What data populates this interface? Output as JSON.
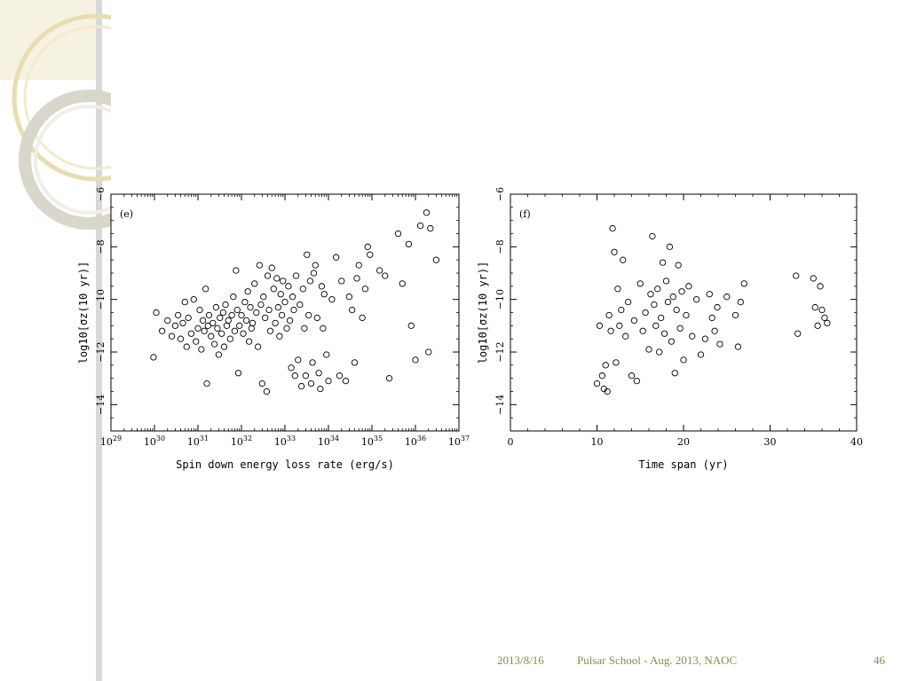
{
  "slide": {
    "footer": {
      "date": "2013/8/16",
      "title": "Pulsar School  - Aug. 2013, NAOC",
      "page": "46"
    }
  },
  "chart_data": [
    {
      "type": "scatter",
      "panel": "(e)",
      "xlabel": "Spin down energy loss rate (erg/s)",
      "ylabel": "log10[σz(10 yr)]",
      "xscale": "log",
      "xlim": [
        1e+29,
        1e+37
      ],
      "ylim": [
        -15,
        -6
      ],
      "xticks": [
        1e+29,
        1e+30,
        1e+31,
        1e+32,
        1e+33,
        1e+34,
        1e+35,
        1e+36,
        1e+37
      ],
      "xtick_labels": [
        {
          "base": "10",
          "exp": "29"
        },
        {
          "base": "10",
          "exp": "30"
        },
        {
          "base": "10",
          "exp": "31"
        },
        {
          "base": "10",
          "exp": "32"
        },
        {
          "base": "10",
          "exp": "33"
        },
        {
          "base": "10",
          "exp": "34"
        },
        {
          "base": "10",
          "exp": "35"
        },
        {
          "base": "10",
          "exp": "36"
        },
        {
          "base": "10",
          "exp": "37"
        }
      ],
      "yticks": [
        -6,
        -8,
        -10,
        -12,
        -14
      ],
      "ytick_labels": [
        "−6",
        "−8",
        "−10",
        "−12",
        "−14"
      ],
      "points": [
        [
          9.5e+29,
          -12.2
        ],
        [
          1.1e+30,
          -10.5
        ],
        [
          1.5e+30,
          -11.2
        ],
        [
          2e+30,
          -10.8
        ],
        [
          2.5e+30,
          -11.4
        ],
        [
          3e+30,
          -11
        ],
        [
          3.5e+30,
          -10.6
        ],
        [
          4e+30,
          -11.5
        ],
        [
          4.5e+30,
          -10.9
        ],
        [
          5e+30,
          -10.1
        ],
        [
          5.5e+30,
          -11.8
        ],
        [
          6e+30,
          -10.7
        ],
        [
          7e+30,
          -11.3
        ],
        [
          8e+30,
          -10
        ],
        [
          9e+30,
          -11.6
        ],
        [
          1e+31,
          -11.1
        ],
        [
          1.1e+31,
          -10.4
        ],
        [
          1.2e+31,
          -11.9
        ],
        [
          1.3e+31,
          -10.8
        ],
        [
          1.4e+31,
          -11.2
        ],
        [
          1.5e+31,
          -9.6
        ],
        [
          1.6e+31,
          -13.2
        ],
        [
          1.7e+31,
          -11
        ],
        [
          1.8e+31,
          -10.6
        ],
        [
          2e+31,
          -11.4
        ],
        [
          2.2e+31,
          -10.9
        ],
        [
          2.4e+31,
          -11.7
        ],
        [
          2.6e+31,
          -10.3
        ],
        [
          2.8e+31,
          -11.1
        ],
        [
          3e+31,
          -12.1
        ],
        [
          3.2e+31,
          -10.7
        ],
        [
          3.5e+31,
          -11.3
        ],
        [
          3.8e+31,
          -10.5
        ],
        [
          4e+31,
          -11.8
        ],
        [
          4.3e+31,
          -10.2
        ],
        [
          4.6e+31,
          -11
        ],
        [
          5e+31,
          -10.8
        ],
        [
          5.5e+31,
          -11.5
        ],
        [
          6e+31,
          -10.6
        ],
        [
          6.5e+31,
          -9.9
        ],
        [
          7e+31,
          -11.2
        ],
        [
          7.5e+31,
          -8.9
        ],
        [
          8e+31,
          -10.4
        ],
        [
          8.5e+31,
          -12.8
        ],
        [
          9e+31,
          -11
        ],
        [
          1e+32,
          -10.6
        ],
        [
          1.1e+32,
          -11.3
        ],
        [
          1.2e+32,
          -10.1
        ],
        [
          1.3e+32,
          -10.8
        ],
        [
          1.4e+32,
          -9.7
        ],
        [
          1.5e+32,
          -11.6
        ],
        [
          1.6e+32,
          -10.3
        ],
        [
          1.7e+32,
          -11.1
        ],
        [
          1.8e+32,
          -10.9
        ],
        [
          2e+32,
          -9.4
        ],
        [
          2.2e+32,
          -10.5
        ],
        [
          2.4e+32,
          -11.8
        ],
        [
          2.6e+32,
          -8.7
        ],
        [
          2.8e+32,
          -10.2
        ],
        [
          3e+32,
          -13.2
        ],
        [
          3.2e+32,
          -9.9
        ],
        [
          3.5e+32,
          -10.7
        ],
        [
          3.8e+32,
          -13.5
        ],
        [
          4e+32,
          -9.1
        ],
        [
          4.3e+32,
          -10.4
        ],
        [
          4.6e+32,
          -11.2
        ],
        [
          5e+32,
          -8.8
        ],
        [
          5.5e+32,
          -9.6
        ],
        [
          6e+32,
          -10.9
        ],
        [
          6.5e+32,
          -9.2
        ],
        [
          7e+32,
          -10.3
        ],
        [
          7.5e+32,
          -11.4
        ],
        [
          8e+32,
          -9.8
        ],
        [
          8.5e+32,
          -10.6
        ],
        [
          9e+32,
          -9.3
        ],
        [
          1e+33,
          -10.1
        ],
        [
          1.1e+33,
          -11.1
        ],
        [
          1.2e+33,
          -9.5
        ],
        [
          1.3e+33,
          -10.8
        ],
        [
          1.4e+33,
          -12.6
        ],
        [
          1.5e+33,
          -9.9
        ],
        [
          1.6e+33,
          -10.4
        ],
        [
          1.7e+33,
          -12.9
        ],
        [
          1.8e+33,
          -9.1
        ],
        [
          2e+33,
          -12.3
        ],
        [
          2.2e+33,
          -10.2
        ],
        [
          2.4e+33,
          -13.3
        ],
        [
          2.6e+33,
          -9.6
        ],
        [
          2.8e+33,
          -11.1
        ],
        [
          3e+33,
          -12.9
        ],
        [
          3.2e+33,
          -8.3
        ],
        [
          3.5e+33,
          -10.6
        ],
        [
          3.8e+33,
          -9.3
        ],
        [
          4e+33,
          -13.2
        ],
        [
          4.3e+33,
          -12.4
        ],
        [
          4.6e+33,
          -9
        ],
        [
          5e+33,
          -8.7
        ],
        [
          5.5e+33,
          -10.7
        ],
        [
          6e+33,
          -12.8
        ],
        [
          6.5e+33,
          -13.4
        ],
        [
          7e+33,
          -9.5
        ],
        [
          7.5e+33,
          -11.1
        ],
        [
          8e+33,
          -9.8
        ],
        [
          9e+33,
          -12.1
        ],
        [
          1e+34,
          -13.1
        ],
        [
          1.2e+34,
          -10
        ],
        [
          1.5e+34,
          -8.4
        ],
        [
          1.8e+34,
          -12.9
        ],
        [
          2e+34,
          -9.3
        ],
        [
          2.5e+34,
          -13.1
        ],
        [
          3e+34,
          -9.9
        ],
        [
          3.5e+34,
          -10.4
        ],
        [
          4e+34,
          -12.4
        ],
        [
          4.5e+34,
          -9.2
        ],
        [
          5e+34,
          -8.7
        ],
        [
          6e+34,
          -10.7
        ],
        [
          7e+34,
          -9.6
        ],
        [
          8e+34,
          -8
        ],
        [
          9e+34,
          -8.3
        ],
        [
          1.5e+35,
          -8.9
        ],
        [
          2e+35,
          -9.1
        ],
        [
          2.5e+35,
          -13
        ],
        [
          4e+35,
          -7.5
        ],
        [
          5e+35,
          -9.4
        ],
        [
          7e+35,
          -7.9
        ],
        [
          8e+35,
          -11
        ],
        [
          1e+36,
          -12.3
        ],
        [
          1.3e+36,
          -7.2
        ],
        [
          1.8e+36,
          -6.7
        ],
        [
          2.2e+36,
          -7.3
        ],
        [
          3e+36,
          -8.5
        ],
        [
          2e+36,
          -12
        ]
      ]
    },
    {
      "type": "scatter",
      "panel": "(f)",
      "xlabel": "Time span (yr)",
      "ylabel": "log10[σz(10 yr)]",
      "xscale": "linear",
      "xlim": [
        0,
        40
      ],
      "ylim": [
        -15,
        -6
      ],
      "xticks": [
        0,
        10,
        20,
        30,
        40
      ],
      "xtick_labels": [
        "0",
        "10",
        "20",
        "30",
        "40"
      ],
      "yticks": [
        -6,
        -8,
        -10,
        -12,
        -14
      ],
      "ytick_labels": [
        "−6",
        "−8",
        "−10",
        "−12",
        "−14"
      ],
      "points": [
        [
          10,
          -13.2
        ],
        [
          10.3,
          -11
        ],
        [
          10.6,
          -12.9
        ],
        [
          10.8,
          -13.4
        ],
        [
          11,
          -12.5
        ],
        [
          11.2,
          -13.5
        ],
        [
          11.4,
          -10.6
        ],
        [
          11.6,
          -11.2
        ],
        [
          11.8,
          -7.3
        ],
        [
          12,
          -8.2
        ],
        [
          12.2,
          -12.4
        ],
        [
          12.4,
          -9.6
        ],
        [
          12.6,
          -11
        ],
        [
          12.8,
          -10.4
        ],
        [
          13,
          -8.5
        ],
        [
          13.3,
          -11.4
        ],
        [
          13.6,
          -10.1
        ],
        [
          14,
          -12.9
        ],
        [
          14.3,
          -10.8
        ],
        [
          14.6,
          -13.1
        ],
        [
          15,
          -9.4
        ],
        [
          15.3,
          -11.2
        ],
        [
          15.6,
          -10.5
        ],
        [
          16,
          -11.9
        ],
        [
          16.2,
          -9.8
        ],
        [
          16.4,
          -7.6
        ],
        [
          16.6,
          -10.2
        ],
        [
          16.8,
          -11
        ],
        [
          17,
          -9.6
        ],
        [
          17.2,
          -12
        ],
        [
          17.4,
          -10.7
        ],
        [
          17.6,
          -8.6
        ],
        [
          17.8,
          -11.3
        ],
        [
          18,
          -9.3
        ],
        [
          18.2,
          -10.1
        ],
        [
          18.4,
          -8
        ],
        [
          18.6,
          -11.6
        ],
        [
          18.8,
          -9.9
        ],
        [
          19,
          -12.8
        ],
        [
          19.2,
          -10.4
        ],
        [
          19.4,
          -8.7
        ],
        [
          19.6,
          -11.1
        ],
        [
          19.8,
          -9.7
        ],
        [
          20,
          -12.3
        ],
        [
          20.3,
          -10.6
        ],
        [
          20.6,
          -9.5
        ],
        [
          21,
          -11.4
        ],
        [
          21.5,
          -10
        ],
        [
          22,
          -12.1
        ],
        [
          22.5,
          -11.5
        ],
        [
          23,
          -9.8
        ],
        [
          23.3,
          -10.7
        ],
        [
          23.6,
          -11.2
        ],
        [
          23.9,
          -10.3
        ],
        [
          24.2,
          -11.7
        ],
        [
          25,
          -9.9
        ],
        [
          26,
          -10.6
        ],
        [
          26.3,
          -11.8
        ],
        [
          26.6,
          -10.1
        ],
        [
          27,
          -9.4
        ],
        [
          33,
          -9.1
        ],
        [
          33.2,
          -11.3
        ],
        [
          35,
          -9.2
        ],
        [
          35.2,
          -10.3
        ],
        [
          35.5,
          -11
        ],
        [
          35.8,
          -9.5
        ],
        [
          36,
          -10.4
        ],
        [
          36.3,
          -10.7
        ],
        [
          36.6,
          -10.9
        ]
      ]
    }
  ]
}
